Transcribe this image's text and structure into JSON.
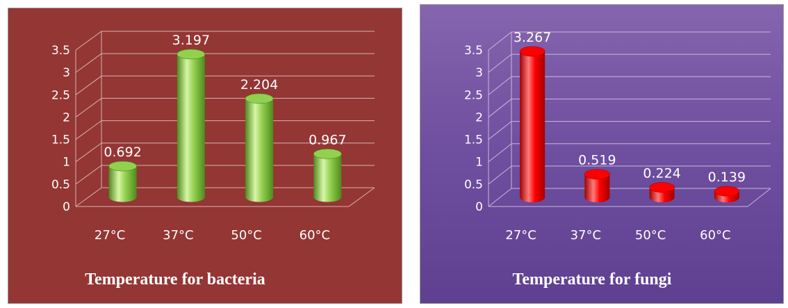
{
  "chart_data": [
    {
      "type": "bar",
      "title": "Temperature for bacteria",
      "categories": [
        "27°C",
        "37°C",
        "50°C",
        "60°C"
      ],
      "values": [
        0.692,
        3.197,
        2.204,
        0.967
      ],
      "data_labels": [
        "0.692",
        "3.197",
        "2.204",
        "0.967"
      ],
      "ylim": [
        0,
        3.5
      ],
      "y_ticks": [
        0,
        0.5,
        1,
        1.5,
        2,
        2.5,
        3,
        3.5
      ],
      "y_tick_labels": [
        "0",
        "0.5",
        "1",
        "1.5",
        "2",
        "2.5",
        "3",
        "3.5"
      ],
      "grid": true,
      "style": "3d-cylinder",
      "colors": {
        "background": "#943634",
        "bar": "#92d050",
        "bar_dark": "#4f8a1c",
        "bar_light": "#d8f5a8",
        "text": "#ffffff",
        "grid": "#d9b3b2"
      }
    },
    {
      "type": "bar",
      "title": "Temperature for fungi",
      "categories": [
        "27°C",
        "37°C",
        "50°C",
        "60°C"
      ],
      "values": [
        3.267,
        0.519,
        0.224,
        0.139
      ],
      "data_labels": [
        "3.267",
        "0.519",
        "0.224",
        "0.139"
      ],
      "ylim": [
        0,
        3.5
      ],
      "y_ticks": [
        0,
        0.5,
        1,
        1.5,
        2,
        2.5,
        3,
        3.5
      ],
      "y_tick_labels": [
        "0",
        "0.5",
        "1",
        "1.5",
        "2",
        "2.5",
        "3",
        "3.5"
      ],
      "grid": true,
      "style": "3d-cylinder",
      "colors": {
        "background": "#7254a2",
        "bar": "#ff0000",
        "bar_dark": "#a30000",
        "bar_light": "#ff7a7a",
        "text": "#ffffff",
        "grid": "#c9b8e0"
      }
    }
  ]
}
